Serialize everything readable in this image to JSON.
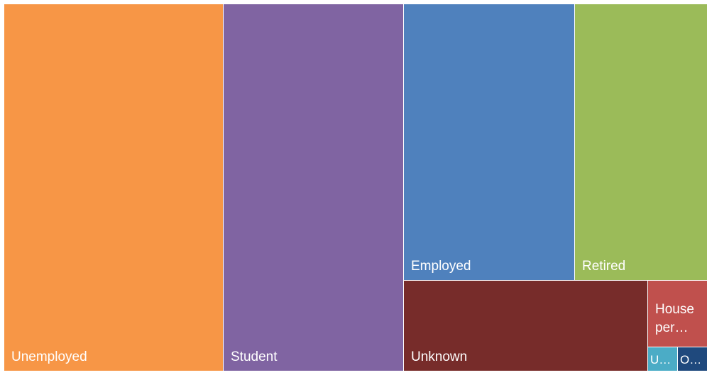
{
  "chart_data": {
    "type": "treemap",
    "title": "",
    "items": [
      {
        "label": "Unemployed",
        "value": 310,
        "color": "#F79646"
      },
      {
        "label": "Student",
        "value": 255,
        "color": "#8064A2"
      },
      {
        "label": "Employed",
        "value": 136,
        "color": "#4F81BD"
      },
      {
        "label": "Retired",
        "value": 106,
        "color": "#9BBB59"
      },
      {
        "label": "Unknown",
        "value": 95,
        "color": "#772C2A"
      },
      {
        "label": "House\nper…",
        "value": 20,
        "color": "#C0504D"
      },
      {
        "label": "U…",
        "value": 4,
        "color": "#4BACC6"
      },
      {
        "label": "O…",
        "value": 4,
        "color": "#1F497D"
      }
    ]
  }
}
